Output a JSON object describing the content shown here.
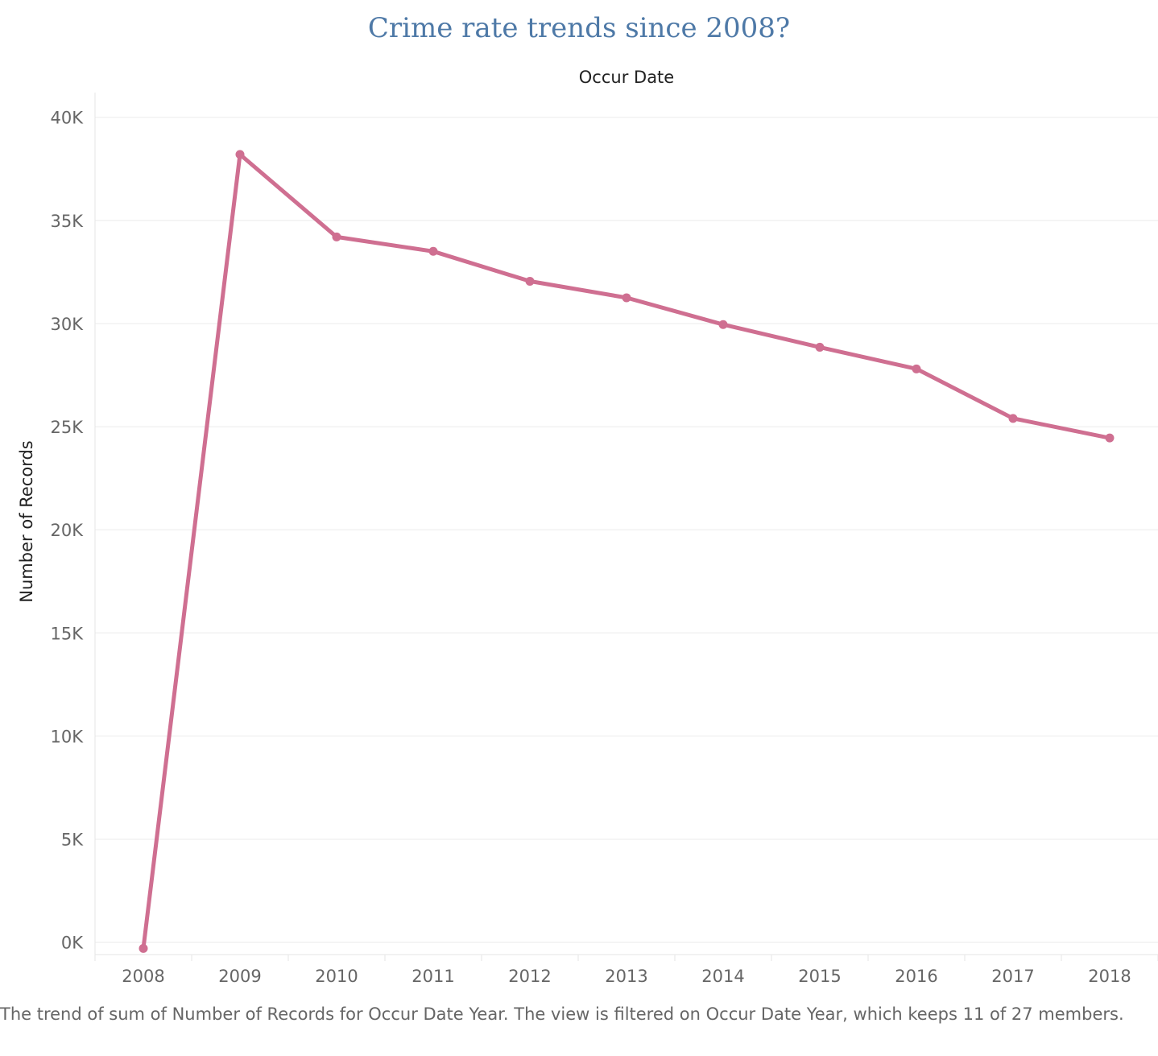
{
  "chart_data": {
    "type": "line",
    "title": "Crime rate trends since 2008?",
    "column_header": "Occur Date",
    "ylabel": "Number of Records",
    "x": [
      "2008",
      "2009",
      "2010",
      "2011",
      "2012",
      "2013",
      "2014",
      "2015",
      "2016",
      "2017",
      "2018"
    ],
    "series": [
      {
        "values": [
          -300,
          38200,
          34200,
          33500,
          32050,
          31250,
          29950,
          28850,
          27800,
          25400,
          24450
        ],
        "color": "#cf6f91"
      }
    ],
    "ylim": [
      -600,
      41200
    ],
    "yticks": [
      0,
      5000,
      10000,
      15000,
      20000,
      25000,
      30000,
      35000,
      40000
    ],
    "ytick_labels": [
      "0K",
      "5K",
      "10K",
      "15K",
      "20K",
      "25K",
      "30K",
      "35K",
      "40K"
    ],
    "grid": true,
    "legend": "none",
    "caption": "The trend of sum of Number of Records for Occur Date Year. The view is filtered on Occur Date Year, which keeps 11 of 27 members."
  }
}
